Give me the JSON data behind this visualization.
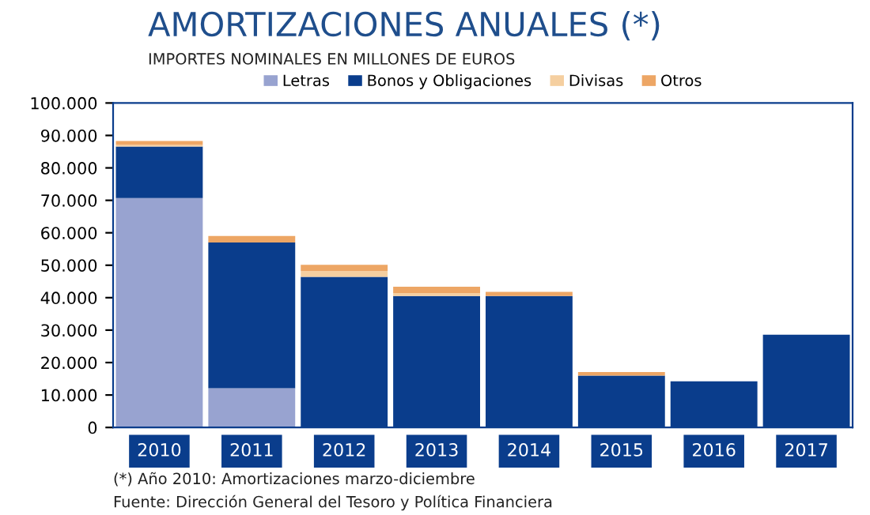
{
  "chart_data": {
    "type": "bar",
    "stacked": true,
    "title": "AMORTIZACIONES ANUALES (*)",
    "subtitle": "IMPORTES NOMINALES EN MILLONES DE EUROS",
    "categories": [
      "2010",
      "2011",
      "2012",
      "2013",
      "2014",
      "2015",
      "2016",
      "2017"
    ],
    "series": [
      {
        "name": "Letras",
        "color": "#98a3d0",
        "values": [
          70700,
          12100,
          0,
          0,
          0,
          0,
          0,
          0
        ]
      },
      {
        "name": "Bonos y Obligaciones",
        "color": "#0a3d8c",
        "values": [
          15900,
          44900,
          46400,
          40500,
          40500,
          16000,
          14200,
          28600
        ]
      },
      {
        "name": "Divisas",
        "color": "#f5cfa0",
        "values": [
          500,
          0,
          1800,
          900,
          0,
          0,
          0,
          0
        ]
      },
      {
        "name": "Otros",
        "color": "#eda665",
        "values": [
          1200,
          2000,
          1900,
          2000,
          1300,
          1100,
          0,
          0
        ]
      }
    ],
    "ylim": [
      0,
      100000
    ],
    "yticks": [
      {
        "value": 0,
        "label": "0"
      },
      {
        "value": 10000,
        "label": "10.000"
      },
      {
        "value": 20000,
        "label": "20.000"
      },
      {
        "value": 30000,
        "label": "30.000"
      },
      {
        "value": 40000,
        "label": "40.000"
      },
      {
        "value": 50000,
        "label": "50.000"
      },
      {
        "value": 60000,
        "label": "60.000"
      },
      {
        "value": 70000,
        "label": "70.000"
      },
      {
        "value": 80000,
        "label": "80.000"
      },
      {
        "value": 90000,
        "label": "90.000"
      },
      {
        "value": 100000,
        "label": "100.000"
      }
    ],
    "grid": false,
    "legend": "top",
    "annotations": [
      "(*) Año 2010: Amortizaciones marzo-diciembre",
      "Fuente: Dirección General del Tesoro y Política Financiera"
    ]
  }
}
